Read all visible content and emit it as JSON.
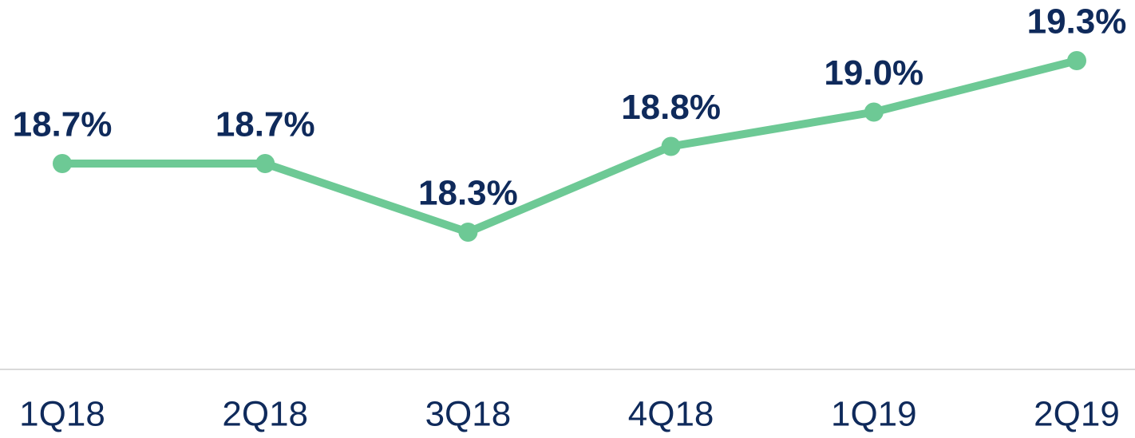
{
  "chart_data": {
    "type": "line",
    "categories": [
      "1Q18",
      "2Q18",
      "3Q18",
      "4Q18",
      "1Q19",
      "2Q19"
    ],
    "series": [
      {
        "color": "#6dc995",
        "values": [
          18.7,
          18.7,
          18.3,
          18.8,
          19.0,
          19.3
        ],
        "value_labels": [
          "18.7%",
          "18.7%",
          "18.3%",
          "18.8%",
          "19.0%",
          "19.3%"
        ]
      }
    ],
    "ylim": [
      17.5,
      19.5
    ]
  }
}
